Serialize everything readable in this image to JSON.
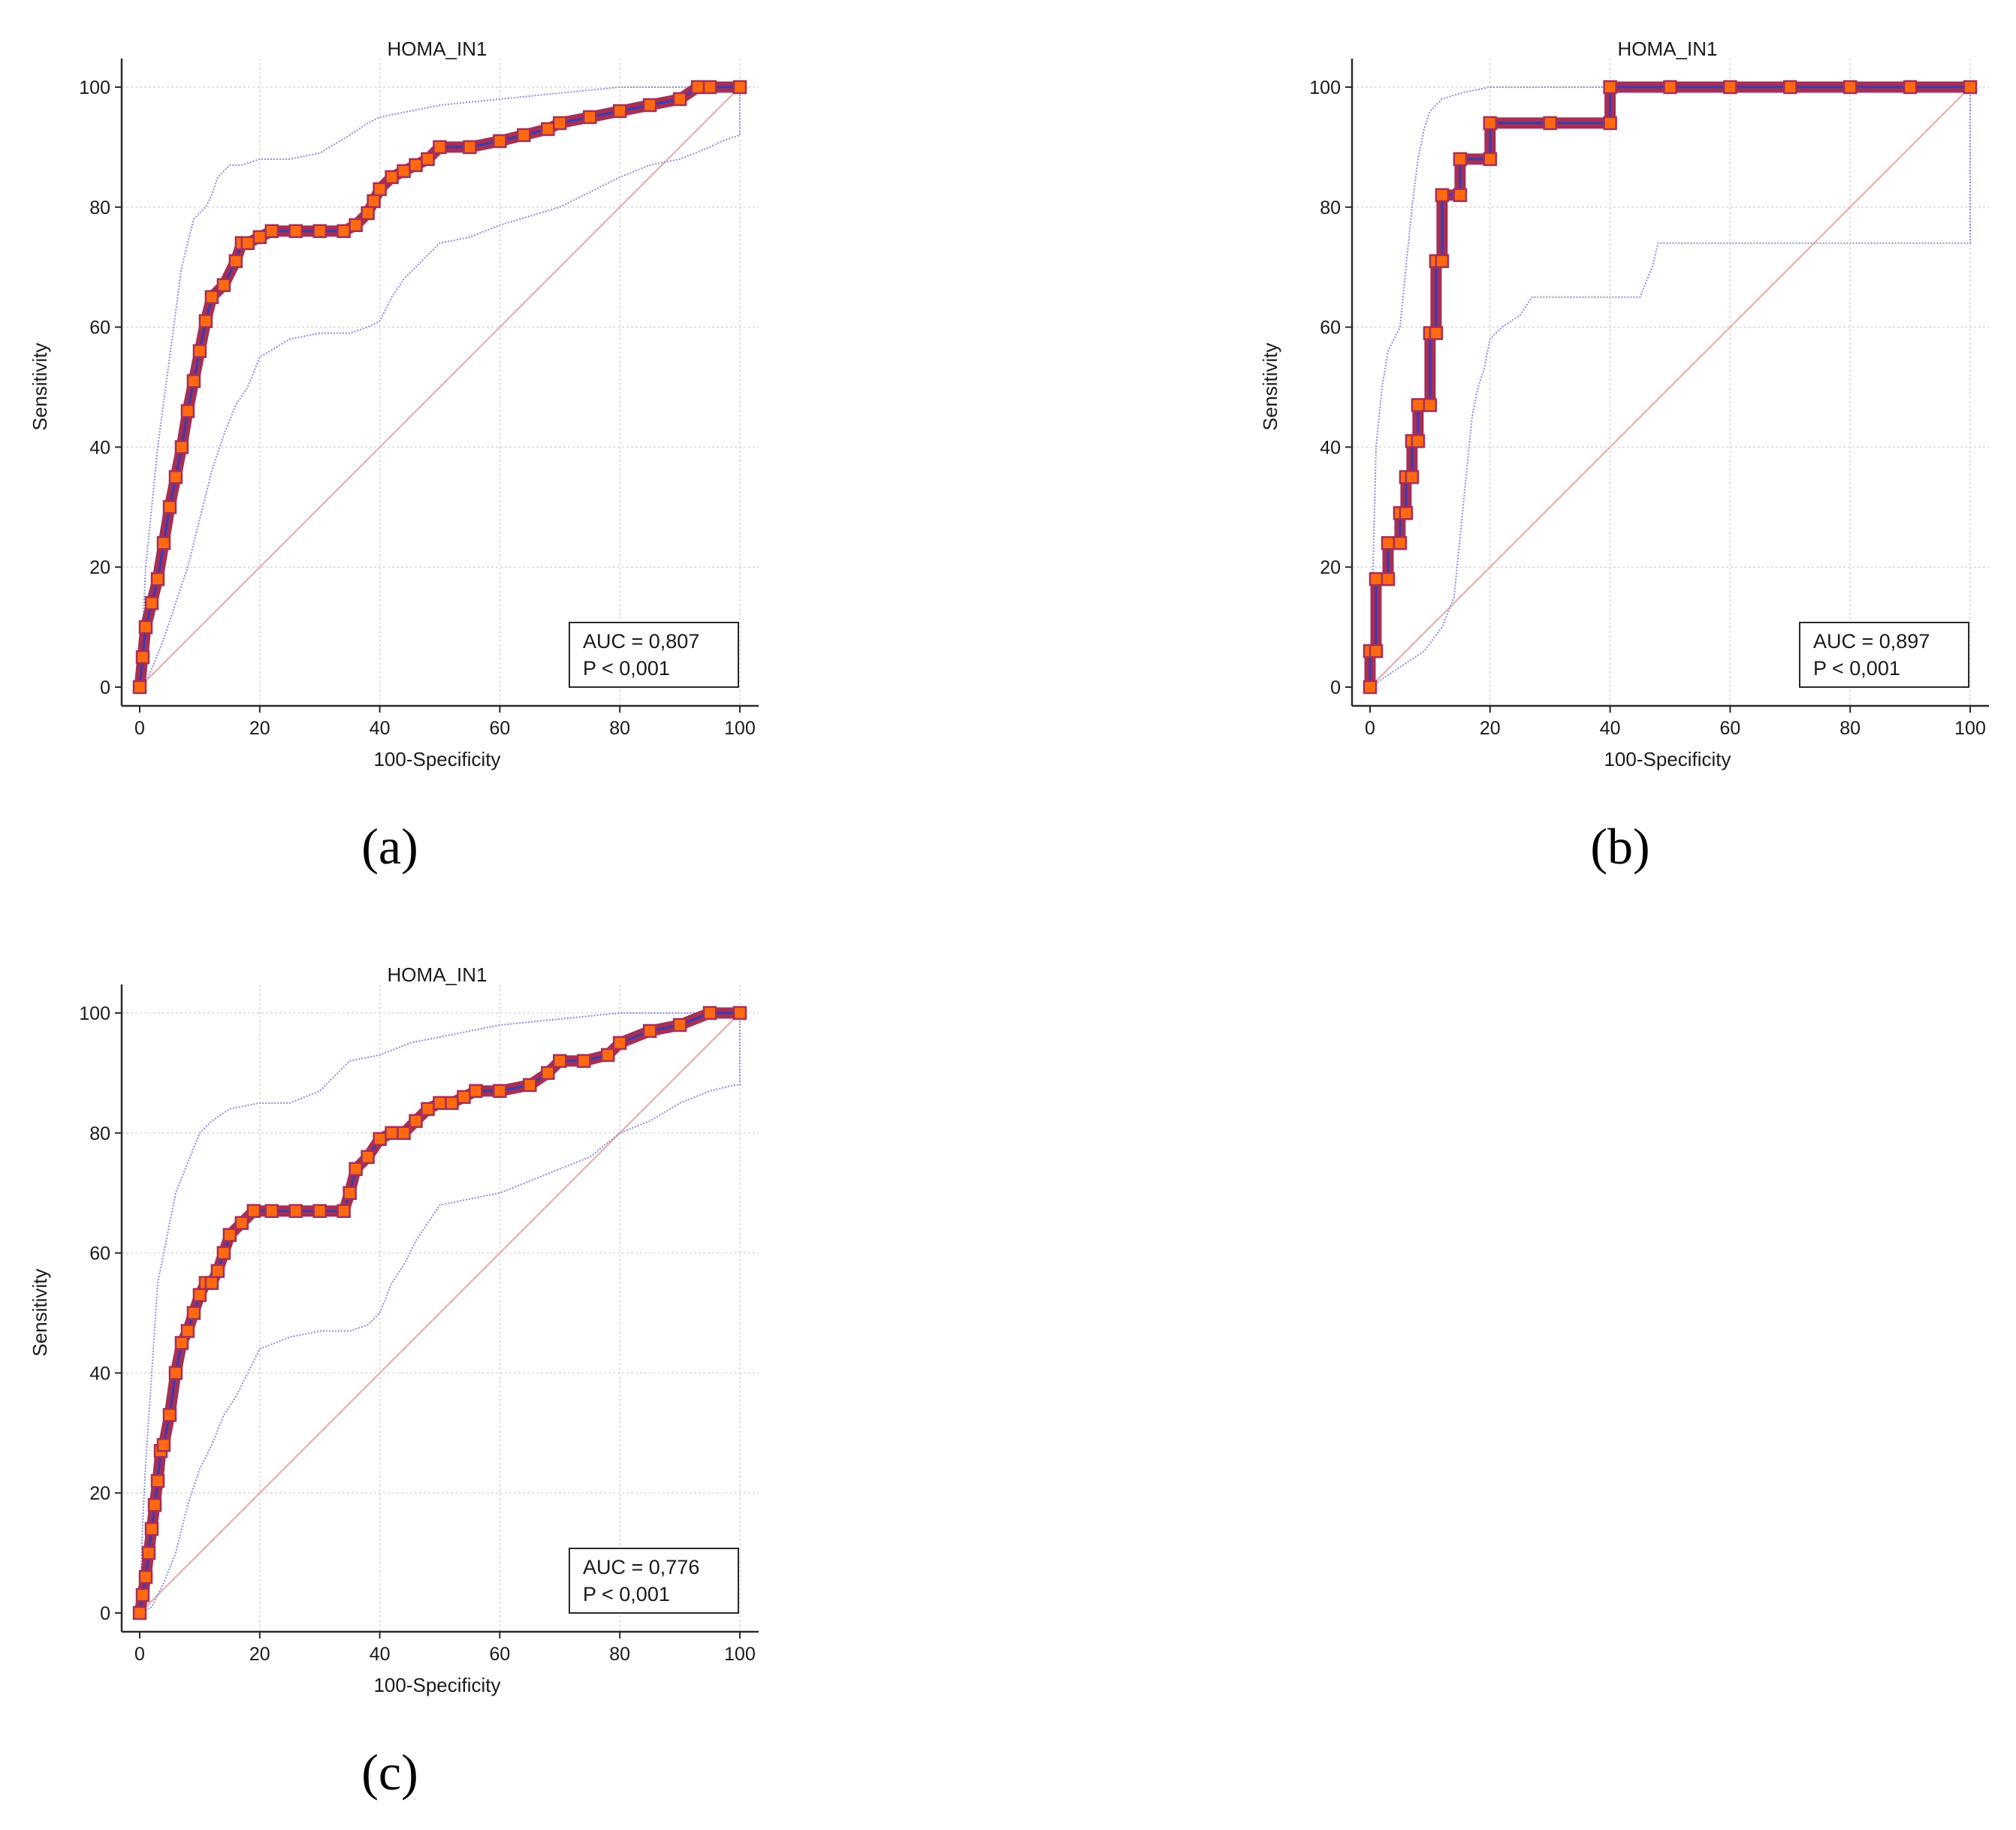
{
  "colors": {
    "curve": "#a52f57",
    "curve_line": "#3b3bb0",
    "marker": "#ff6a10",
    "ci": "#8c8cdc",
    "diagonal": "#e8a7a7",
    "grid": "#d8d8d8",
    "axis": "#2a2a2a"
  },
  "chart_data": [
    {
      "type": "line",
      "panel_label": "(a)",
      "title": "HOMA_IN1",
      "xlabel": "100-Specificity",
      "ylabel": "Sensitivity",
      "xlim": [
        0,
        100
      ],
      "ylim": [
        0,
        100
      ],
      "xticks": [
        0,
        20,
        40,
        60,
        80,
        100
      ],
      "yticks": [
        0,
        20,
        40,
        60,
        80,
        100
      ],
      "grid": true,
      "auc_text": "AUC = 0,807",
      "p_text": "P < 0,001",
      "series": [
        {
          "name": "ROC curve",
          "x": [
            0,
            0.5,
            1,
            2,
            3,
            4,
            5,
            6,
            7,
            8,
            9,
            10,
            11,
            12,
            14,
            16,
            17,
            18,
            20,
            22,
            26,
            30,
            34,
            36,
            38,
            39,
            40,
            42,
            44,
            46,
            48,
            50,
            55,
            60,
            64,
            68,
            70,
            75,
            80,
            85,
            90,
            93,
            95,
            100
          ],
          "y": [
            0,
            5,
            10,
            14,
            18,
            24,
            30,
            35,
            40,
            46,
            51,
            56,
            61,
            65,
            67,
            71,
            74,
            74,
            75,
            76,
            76,
            76,
            76,
            77,
            79,
            81,
            83,
            85,
            86,
            87,
            88,
            90,
            90,
            91,
            92,
            93,
            94,
            95,
            96,
            97,
            98,
            100,
            100,
            100
          ]
        },
        {
          "name": "Upper CI",
          "x": [
            0,
            0.5,
            1,
            2,
            3,
            5,
            7,
            9,
            11,
            12,
            13,
            15,
            17,
            20,
            25,
            30,
            35,
            38,
            40,
            45,
            50,
            60,
            70,
            80,
            90,
            100
          ],
          "y": [
            0,
            10,
            20,
            30,
            40,
            55,
            70,
            78,
            80,
            82,
            85,
            87,
            87,
            88,
            88,
            89,
            92,
            94,
            95,
            96,
            97,
            98,
            99,
            100,
            100,
            100
          ]
        },
        {
          "name": "Lower CI",
          "x": [
            0,
            1,
            2,
            4,
            6,
            8,
            10,
            12,
            14,
            16,
            18,
            20,
            25,
            30,
            35,
            38,
            40,
            42,
            44,
            46,
            48,
            50,
            55,
            60,
            70,
            80,
            85,
            90,
            95,
            97,
            100,
            100
          ],
          "y": [
            0,
            1,
            3,
            8,
            14,
            20,
            28,
            36,
            42,
            47,
            50,
            55,
            58,
            59,
            59,
            60,
            61,
            65,
            68,
            70,
            72,
            74,
            75,
            77,
            80,
            85,
            87,
            88,
            90,
            91,
            92,
            100
          ]
        },
        {
          "name": "Reference",
          "x": [
            0,
            100
          ],
          "y": [
            0,
            100
          ]
        }
      ]
    },
    {
      "type": "line",
      "panel_label": "(b)",
      "title": "HOMA_IN1",
      "xlabel": "100-Specificity",
      "ylabel": "Sensitivity",
      "xlim": [
        0,
        100
      ],
      "ylim": [
        0,
        100
      ],
      "xticks": [
        0,
        20,
        40,
        60,
        80,
        100
      ],
      "yticks": [
        0,
        20,
        40,
        60,
        80,
        100
      ],
      "grid": true,
      "auc_text": "AUC = 0,897",
      "p_text": "P < 0,001",
      "series": [
        {
          "name": "ROC curve",
          "x": [
            0,
            0,
            1,
            1,
            3,
            3,
            5,
            5,
            6,
            6,
            7,
            7,
            8,
            8,
            10,
            10,
            11,
            11,
            12,
            12,
            15,
            15,
            20,
            20,
            30,
            40,
            40,
            50,
            60,
            70,
            80,
            90,
            100
          ],
          "y": [
            0,
            6,
            6,
            18,
            18,
            24,
            24,
            29,
            29,
            35,
            35,
            41,
            41,
            47,
            47,
            59,
            59,
            71,
            71,
            82,
            82,
            88,
            88,
            94,
            94,
            94,
            100,
            100,
            100,
            100,
            100,
            100,
            100
          ]
        },
        {
          "name": "Upper CI",
          "x": [
            0,
            0.5,
            1,
            2,
            3,
            5,
            6,
            7,
            8,
            9,
            10,
            12,
            15,
            20,
            40,
            60,
            80,
            100
          ],
          "y": [
            0,
            20,
            40,
            50,
            56,
            60,
            70,
            80,
            88,
            93,
            96,
            98,
            99,
            100,
            100,
            100,
            100,
            100
          ]
        },
        {
          "name": "Lower CI",
          "x": [
            0,
            3,
            6,
            9,
            12,
            14,
            15,
            16,
            17,
            18,
            19,
            20,
            22,
            25,
            27,
            30,
            40,
            45,
            47,
            48,
            50,
            60,
            70,
            80,
            99,
            100,
            100
          ],
          "y": [
            0,
            2,
            4,
            6,
            10,
            15,
            25,
            35,
            45,
            50,
            53,
            58,
            60,
            62,
            65,
            65,
            65,
            65,
            70,
            74,
            74,
            74,
            74,
            74,
            74,
            74,
            100
          ]
        },
        {
          "name": "Reference",
          "x": [
            0,
            100
          ],
          "y": [
            0,
            100
          ]
        }
      ]
    },
    {
      "type": "line",
      "panel_label": "(c)",
      "title": "HOMA_IN1",
      "xlabel": "100-Specificity",
      "ylabel": "Sensitivity",
      "xlim": [
        0,
        100
      ],
      "ylim": [
        0,
        100
      ],
      "xticks": [
        0,
        20,
        40,
        60,
        80,
        100
      ],
      "yticks": [
        0,
        20,
        40,
        60,
        80,
        100
      ],
      "grid": true,
      "auc_text": "AUC = 0,776",
      "p_text": "P < 0,001",
      "series": [
        {
          "name": "ROC curve",
          "x": [
            0,
            0.5,
            1,
            1.5,
            2,
            2.5,
            3,
            3.5,
            4,
            5,
            6,
            7,
            8,
            9,
            10,
            11,
            12,
            13,
            14,
            15,
            17,
            19,
            22,
            26,
            30,
            34,
            35,
            36,
            38,
            40,
            42,
            44,
            46,
            48,
            50,
            52,
            54,
            56,
            60,
            65,
            68,
            70,
            74,
            78,
            80,
            85,
            90,
            95,
            100
          ],
          "y": [
            0,
            3,
            6,
            10,
            14,
            18,
            22,
            27,
            28,
            33,
            40,
            45,
            47,
            50,
            53,
            55,
            55,
            57,
            60,
            63,
            65,
            67,
            67,
            67,
            67,
            67,
            70,
            74,
            76,
            79,
            80,
            80,
            82,
            84,
            85,
            85,
            86,
            87,
            87,
            88,
            90,
            92,
            92,
            93,
            95,
            97,
            98,
            100,
            100
          ]
        },
        {
          "name": "Upper CI",
          "x": [
            0,
            0.5,
            1,
            2,
            3,
            4,
            5,
            6,
            8,
            10,
            12,
            15,
            20,
            25,
            30,
            35,
            40,
            45,
            50,
            55,
            60,
            70,
            80,
            90,
            100
          ],
          "y": [
            0,
            15,
            25,
            40,
            55,
            60,
            65,
            70,
            75,
            80,
            82,
            84,
            85,
            85,
            87,
            92,
            93,
            95,
            96,
            97,
            98,
            99,
            100,
            100,
            100
          ]
        },
        {
          "name": "Lower CI",
          "x": [
            0,
            2,
            4,
            6,
            8,
            10,
            12,
            14,
            16,
            18,
            20,
            25,
            30,
            35,
            38,
            40,
            42,
            44,
            46,
            48,
            50,
            55,
            60,
            65,
            70,
            75,
            80,
            85,
            90,
            95,
            99,
            100,
            100
          ],
          "y": [
            0,
            1,
            5,
            10,
            18,
            24,
            28,
            33,
            36,
            40,
            44,
            46,
            47,
            47,
            48,
            50,
            55,
            58,
            62,
            65,
            68,
            69,
            70,
            72,
            74,
            76,
            80,
            82,
            85,
            87,
            88,
            88,
            100
          ]
        },
        {
          "name": "Reference",
          "x": [
            0,
            100
          ],
          "y": [
            0,
            100
          ]
        }
      ]
    }
  ]
}
